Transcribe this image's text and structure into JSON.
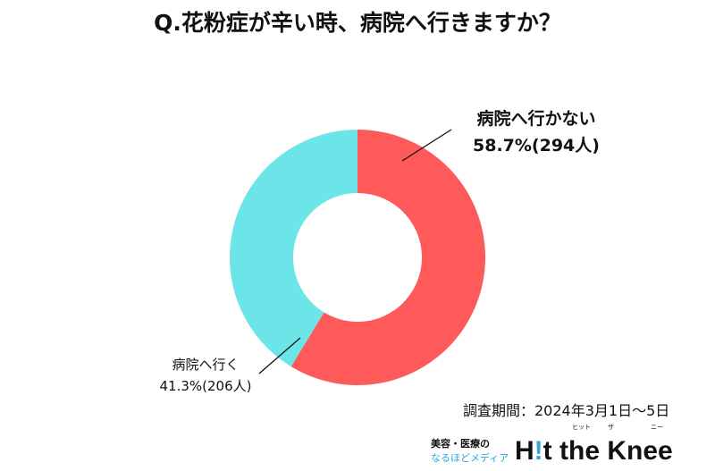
{
  "chart_data": {
    "type": "pie",
    "donut": true,
    "title": "Q.花粉症が辛い時、病院へ行きますか？",
    "slices": [
      {
        "label": "病院へ行かない",
        "value": 58.7,
        "count": 294,
        "display": "58.7%(294人)",
        "color": "#FF5A5A"
      },
      {
        "label": "病院へ行く",
        "value": 41.3,
        "count": 206,
        "display": "41.3%(206人)",
        "color": "#6CE5E8"
      }
    ],
    "note": "調査期間：2024年3月1日〜5日"
  },
  "logo": {
    "line1": "美容・医療の",
    "line2": "なるほどメディア",
    "name": "H!t the Knee",
    "ruby1": "ヒット",
    "ruby2": "ザ",
    "ruby3": "ニー"
  }
}
